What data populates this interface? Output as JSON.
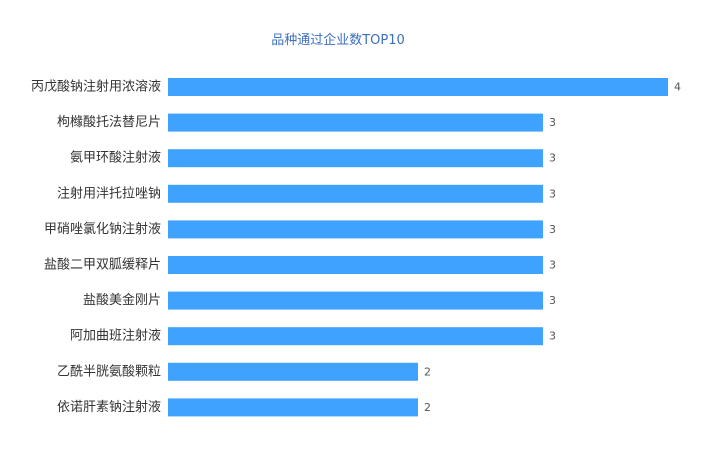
{
  "chart_data": {
    "type": "bar",
    "orientation": "horizontal",
    "title": "品种通过企业数TOP10",
    "categories": [
      "丙戊酸钠注射用浓溶液",
      "枸橼酸托法替尼片",
      "氨甲环酸注射液",
      "注射用泮托拉唑钠",
      "甲硝唑氯化钠注射液",
      "盐酸二甲双胍缓释片",
      "盐酸美金刚片",
      "阿加曲班注射液",
      "乙酰半胱氨酸颗粒",
      "依诺肝素钠注射液"
    ],
    "values": [
      4,
      3,
      3,
      3,
      3,
      3,
      3,
      3,
      2,
      2
    ],
    "xlim": [
      0,
      4
    ],
    "grid": false,
    "legend": "none",
    "colors": {
      "bar": "#3fa2ff",
      "title": "#3d6fbf",
      "label": "#333333",
      "value": "#555555"
    }
  }
}
